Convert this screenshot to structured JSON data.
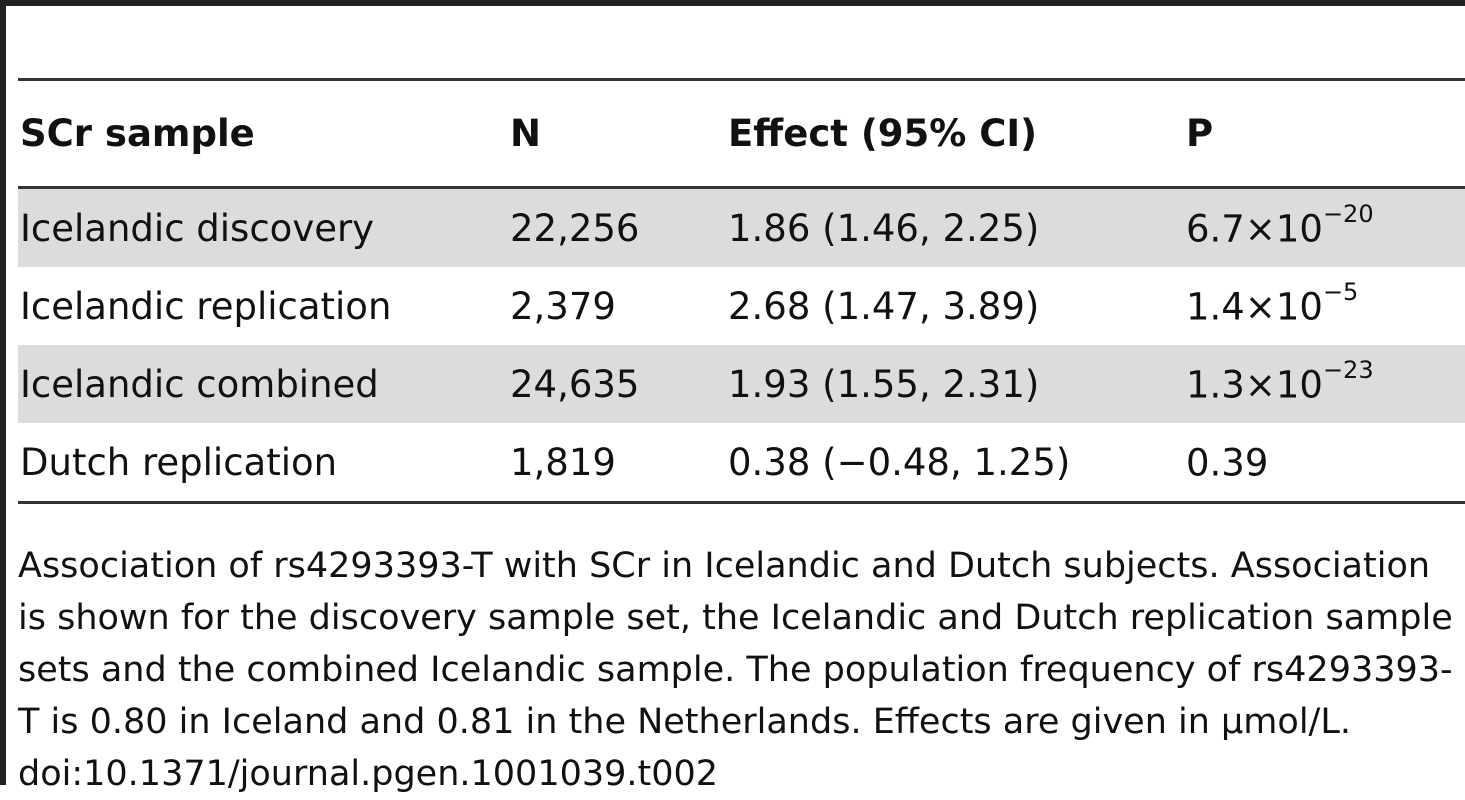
{
  "table": {
    "headers": [
      "SCr sample",
      "N",
      "Effect (95% CI)",
      "P"
    ],
    "rows": [
      {
        "sample": "Icelandic discovery",
        "n": "22,256",
        "effect": "1.86 (1.46, 2.25)",
        "p_base": "6.7×10",
        "p_exp": "−20",
        "shaded": true
      },
      {
        "sample": "Icelandic replication",
        "n": "2,379",
        "effect": "2.68 (1.47, 3.89)",
        "p_base": "1.4×10",
        "p_exp": "−5",
        "shaded": false
      },
      {
        "sample": "Icelandic combined",
        "n": "24,635",
        "effect": "1.93 (1.55, 2.31)",
        "p_base": "1.3×10",
        "p_exp": "−23",
        "shaded": true
      },
      {
        "sample": "Dutch replication",
        "n": "1,819",
        "effect": "0.38 (−0.48, 1.25)",
        "p_base": "0.39",
        "p_exp": "",
        "shaded": false
      }
    ]
  },
  "caption": {
    "text": "Association of rs4293393-T with SCr in Icelandic and Dutch subjects. Association is shown for the discovery sample set, the Icelandic and Dutch replication sample sets and the combined Icelandic sample. The population frequency of rs4293393-T is 0.80 in Iceland and 0.81 in the Netherlands. Effects are given in μmol/L.",
    "doi": "doi:10.1371/journal.pgen.1001039.t002"
  }
}
